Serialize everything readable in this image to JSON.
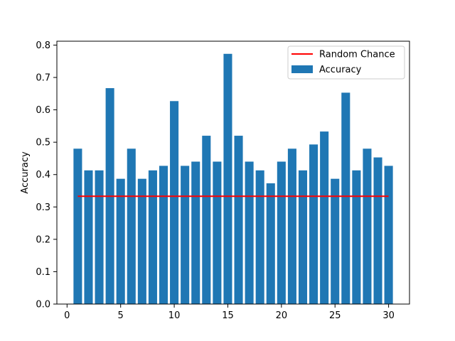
{
  "chart_data": {
    "type": "bar",
    "title": "",
    "xlabel": "",
    "ylabel": "Accuracy",
    "x": [
      1,
      2,
      3,
      4,
      5,
      6,
      7,
      8,
      9,
      10,
      11,
      12,
      13,
      14,
      15,
      16,
      17,
      18,
      19,
      20,
      21,
      22,
      23,
      24,
      25,
      26,
      27,
      28,
      29,
      30
    ],
    "series": [
      {
        "name": "Accuracy",
        "values": [
          0.48,
          0.413,
          0.413,
          0.667,
          0.387,
          0.48,
          0.387,
          0.413,
          0.427,
          0.627,
          0.427,
          0.44,
          0.52,
          0.44,
          0.773,
          0.52,
          0.44,
          0.413,
          0.373,
          0.44,
          0.48,
          0.413,
          0.493,
          0.533,
          0.387,
          0.653,
          0.413,
          0.48,
          0.453,
          0.427
        ],
        "color": "#1f77b4"
      }
    ],
    "reference_line": {
      "name": "Random Chance",
      "value": 0.333,
      "x_range": [
        1,
        30
      ],
      "color": "#ff0000"
    },
    "xlim": [
      -0.95,
      31.95
    ],
    "ylim": [
      0,
      0.812
    ],
    "xticks": [
      0,
      5,
      10,
      15,
      20,
      25,
      30
    ],
    "yticks": [
      0.0,
      0.1,
      0.2,
      0.3,
      0.4,
      0.5,
      0.6,
      0.7,
      0.8
    ],
    "ytick_labels": [
      "0.0",
      "0.1",
      "0.2",
      "0.3",
      "0.4",
      "0.5",
      "0.6",
      "0.7",
      "0.8"
    ],
    "legend": {
      "placement": "top-right",
      "entries": [
        "Random Chance",
        "Accuracy"
      ]
    },
    "grid": false
  }
}
